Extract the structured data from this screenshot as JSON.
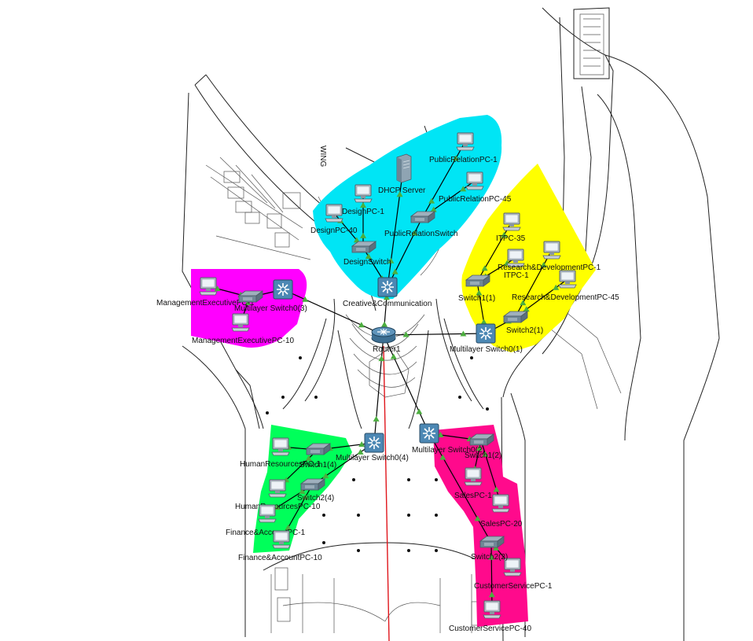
{
  "colors": {
    "management": "#ff00ff",
    "creative": "#00e5f5",
    "it_rnd": "#ffff00",
    "hr_finance": "#00ff5a",
    "sales_customer": "#ff0a8c",
    "uplink": "#e0161c",
    "link_up": "#4cae3f"
  },
  "floor_text": {
    "wing_label": "WING"
  },
  "zones": [
    {
      "id": "management",
      "color_key": "management"
    },
    {
      "id": "creative",
      "color_key": "creative"
    },
    {
      "id": "it_rnd",
      "color_key": "it_rnd"
    },
    {
      "id": "hr_finance",
      "color_key": "hr_finance"
    },
    {
      "id": "sales_customer",
      "color_key": "sales_customer"
    }
  ],
  "devices": [
    {
      "id": "router",
      "type": "router",
      "label": "Router1"
    },
    {
      "id": "msw_creative",
      "type": "l3switch",
      "label": "Creative&Communication"
    },
    {
      "id": "msw3",
      "type": "l3switch",
      "label": "Multilayer Switch0(3)"
    },
    {
      "id": "msw1",
      "type": "l3switch",
      "label": "Multilayer Switch0(1)"
    },
    {
      "id": "msw4",
      "type": "l3switch",
      "label": "Multilayer Switch0(4)"
    },
    {
      "id": "msw2",
      "type": "l3switch",
      "label": "Multilayer Switch0(2)"
    },
    {
      "id": "mgmt_pc1",
      "type": "pc",
      "label": "ManagementExecutivePC-1"
    },
    {
      "id": "mgmt_pc2",
      "type": "pc",
      "label": "ManagementExecutivePC-10"
    },
    {
      "id": "mgmt_sw",
      "type": "switch",
      "label": ""
    },
    {
      "id": "dhcp",
      "type": "server",
      "label": "DHCP Server"
    },
    {
      "id": "design_pc1",
      "type": "pc",
      "label": "DesignPC-1"
    },
    {
      "id": "design_pc40",
      "type": "pc",
      "label": "DesignPC-40"
    },
    {
      "id": "design_sw",
      "type": "switch",
      "label": "DesignSwitch"
    },
    {
      "id": "pr_pc1",
      "type": "pc",
      "label": "PublicRelationPC-1"
    },
    {
      "id": "pr_pc45",
      "type": "pc",
      "label": "PublicRelationPC-45"
    },
    {
      "id": "pr_sw",
      "type": "switch",
      "label": "PublicRelationSwitch"
    },
    {
      "id": "it_pc35",
      "type": "pc",
      "label": "ITPC-35"
    },
    {
      "id": "it_pc1",
      "type": "pc",
      "label": "ITPC-1"
    },
    {
      "id": "rd_pc1",
      "type": "pc",
      "label": "Research&DevelopmentPC-1"
    },
    {
      "id": "rd_pc45",
      "type": "pc",
      "label": "Research&DevelopmentPC-45"
    },
    {
      "id": "sw1_1",
      "type": "switch",
      "label": "Switch1(1)"
    },
    {
      "id": "sw2_1",
      "type": "switch",
      "label": "Switch2(1)"
    },
    {
      "id": "hr_pc1",
      "type": "pc",
      "label": "HumanResourcesPC-1"
    },
    {
      "id": "hr_pc10",
      "type": "pc",
      "label": "HumanResourcesPC-10"
    },
    {
      "id": "fa_pc1",
      "type": "pc",
      "label": "Finance&AccountPC-1"
    },
    {
      "id": "fa_pc10",
      "type": "pc",
      "label": "Finance&AccountPC-10"
    },
    {
      "id": "sw1_4",
      "type": "switch",
      "label": "Switch1(4)"
    },
    {
      "id": "sw2_4",
      "type": "switch",
      "label": "Switch2(4)"
    },
    {
      "id": "sales_pc1",
      "type": "pc",
      "label": "SalesPC-1"
    },
    {
      "id": "sales_pc20",
      "type": "pc",
      "label": "SalesPC-20"
    },
    {
      "id": "cs_pc1",
      "type": "pc",
      "label": "CustomerServicePC-1"
    },
    {
      "id": "cs_pc40",
      "type": "pc",
      "label": "CustomerServicePC-40"
    },
    {
      "id": "sw1_2",
      "type": "switch",
      "label": "Switch1(2)"
    },
    {
      "id": "sw2_2",
      "type": "switch",
      "label": "Switch2(2)"
    }
  ],
  "links": [
    [
      "router",
      "msw_creative"
    ],
    [
      "router",
      "msw3"
    ],
    [
      "router",
      "msw1"
    ],
    [
      "router",
      "msw4"
    ],
    [
      "router",
      "msw2"
    ],
    [
      "msw3",
      "mgmt_sw"
    ],
    [
      "mgmt_sw",
      "mgmt_pc1"
    ],
    [
      "mgmt_sw",
      "mgmt_pc2"
    ],
    [
      "msw_creative",
      "design_sw"
    ],
    [
      "msw_creative",
      "pr_sw"
    ],
    [
      "msw_creative",
      "dhcp"
    ],
    [
      "design_sw",
      "design_pc1"
    ],
    [
      "design_sw",
      "design_pc40"
    ],
    [
      "pr_sw",
      "pr_pc1"
    ],
    [
      "pr_sw",
      "pr_pc45"
    ],
    [
      "msw1",
      "sw1_1"
    ],
    [
      "msw1",
      "sw2_1"
    ],
    [
      "sw1_1",
      "it_pc35"
    ],
    [
      "sw1_1",
      "it_pc1"
    ],
    [
      "sw2_1",
      "rd_pc1"
    ],
    [
      "sw2_1",
      "rd_pc45"
    ],
    [
      "msw4",
      "sw1_4"
    ],
    [
      "msw4",
      "sw2_4"
    ],
    [
      "sw1_4",
      "hr_pc1"
    ],
    [
      "sw1_4",
      "hr_pc10"
    ],
    [
      "sw2_4",
      "fa_pc1"
    ],
    [
      "sw2_4",
      "fa_pc10"
    ],
    [
      "msw2",
      "sw1_2"
    ],
    [
      "msw2",
      "sw2_2"
    ],
    [
      "sw1_2",
      "sales_pc1"
    ],
    [
      "sw1_2",
      "sales_pc20"
    ],
    [
      "sw2_2",
      "cs_pc1"
    ],
    [
      "sw2_2",
      "cs_pc40"
    ]
  ]
}
